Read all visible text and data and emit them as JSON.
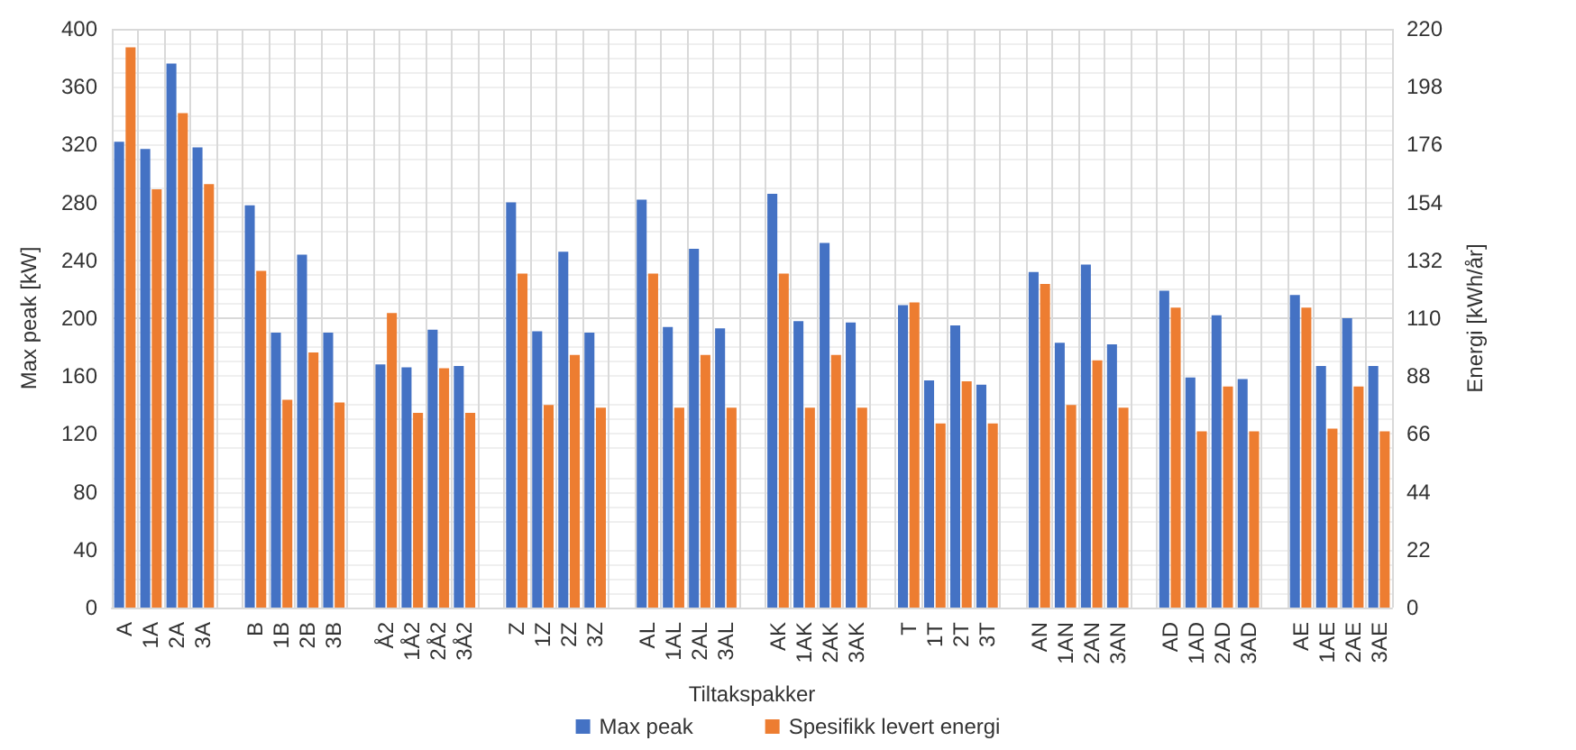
{
  "chart_data": {
    "type": "bar",
    "xlabel": "Tiltakspakker",
    "ylabel": "Max peak [kW]",
    "y2label": "Energi [kWh/år]",
    "categories": [
      "A",
      "1A",
      "2A",
      "3A",
      null,
      "B",
      "1B",
      "2B",
      "3B",
      null,
      "Å2",
      "1Å2",
      "2Å2",
      "3Å2",
      null,
      "Z",
      "1Z",
      "2Z",
      "3Z",
      null,
      "AL",
      "1AL",
      "2AL",
      "3AL",
      null,
      "AK",
      "1AK",
      "2AK",
      "3AK",
      null,
      "T",
      "1T",
      "2T",
      "3T",
      null,
      "AN",
      "1AN",
      "2AN",
      "3AN",
      null,
      "AD",
      "1AD",
      "2AD",
      "3AD",
      null,
      "AE",
      "1AE",
      "2AE",
      "3AE"
    ],
    "series": [
      {
        "name": "Max peak",
        "color": "#4472c4",
        "values": [
          322,
          317,
          376,
          318,
          null,
          278,
          190,
          244,
          190,
          null,
          168,
          166,
          192,
          167,
          null,
          280,
          191,
          246,
          190,
          null,
          282,
          194,
          248,
          193,
          null,
          286,
          198,
          252,
          197,
          null,
          209,
          157,
          195,
          154,
          null,
          232,
          183,
          237,
          182,
          null,
          219,
          159,
          202,
          158,
          null,
          216,
          167,
          200,
          167
        ]
      },
      {
        "name": "Spesifikk levert energi",
        "color": "#ed7d31",
        "axis": "y2",
        "values": [
          213,
          159,
          188,
          161,
          null,
          128,
          79,
          97,
          78,
          null,
          112,
          74,
          91,
          74,
          null,
          127,
          77,
          96,
          76,
          null,
          127,
          76,
          96,
          76,
          null,
          127,
          76,
          96,
          76,
          null,
          116,
          70,
          86,
          70,
          null,
          123,
          77,
          94,
          76,
          null,
          114,
          67,
          84,
          67,
          null,
          114,
          68,
          84,
          67
        ]
      }
    ],
    "ylim": [
      0,
      400
    ],
    "yticks": [
      0,
      40,
      80,
      120,
      160,
      200,
      240,
      280,
      320,
      360,
      400
    ],
    "y2lim": [
      0,
      220
    ],
    "y2ticks": [
      0,
      22,
      44,
      66,
      88,
      110,
      132,
      154,
      176,
      198,
      220
    ],
    "grid": true,
    "legend": "bottom"
  }
}
